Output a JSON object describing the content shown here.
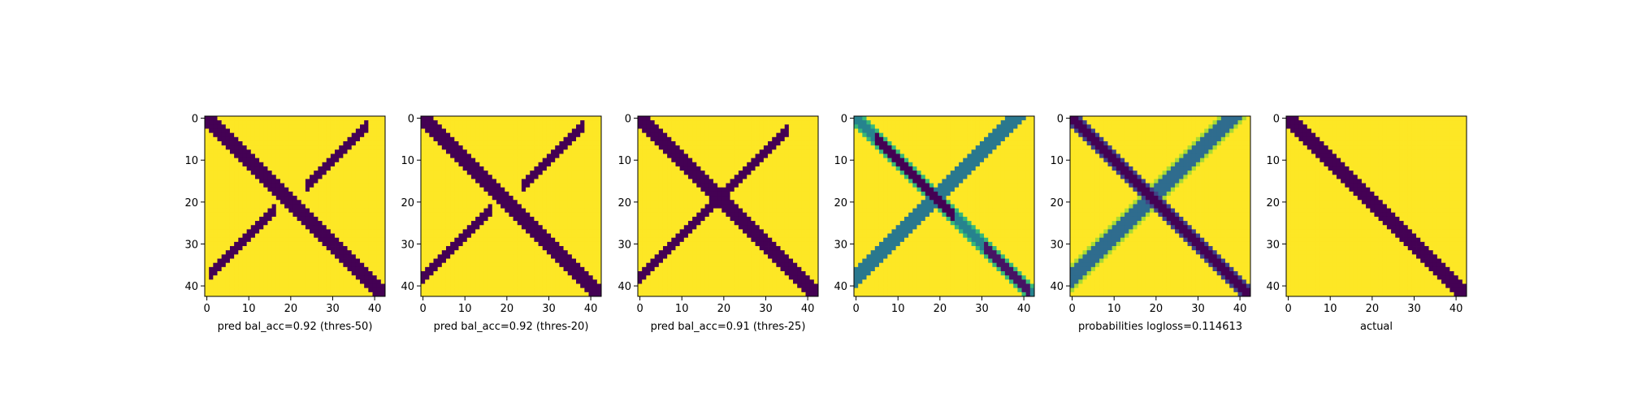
{
  "figure": {
    "background": "#ffffff"
  },
  "colormap": {
    "name": "viridis",
    "stops": [
      "#440154",
      "#482878",
      "#3e4a89",
      "#31688e",
      "#26828e",
      "#1f9e89",
      "#35b779",
      "#6ece58",
      "#b5de2b",
      "#fde725"
    ]
  },
  "chart_data": [
    {
      "type": "heatmap",
      "xlabel": "pred bal_acc=0.92 (thres-50)",
      "size": 43,
      "xticks": [
        0,
        10,
        20,
        30,
        40
      ],
      "yticks": [
        0,
        10,
        20,
        30,
        40
      ],
      "binary": true,
      "bands": [
        {
          "shape": "diagonal",
          "x_range": [
            0,
            42
          ],
          "half_width": 1.8,
          "strength": 1.0
        },
        {
          "shape": "anti-diagonal",
          "x_range": [
            2,
            15
          ],
          "offset": 38,
          "half_width": 1.0,
          "strength": 1.0
        },
        {
          "shape": "anti-diagonal",
          "x_range": [
            25,
            37
          ],
          "offset": 40,
          "half_width": 1.0,
          "strength": 1.0
        }
      ]
    },
    {
      "type": "heatmap",
      "xlabel": "pred bal_acc=0.92 (thres-20)",
      "size": 43,
      "xticks": [
        0,
        10,
        20,
        30,
        40
      ],
      "yticks": [
        0,
        10,
        20,
        30,
        40
      ],
      "binary": true,
      "bands": [
        {
          "shape": "diagonal",
          "x_range": [
            0,
            42
          ],
          "half_width": 1.9,
          "strength": 1.0
        },
        {
          "shape": "anti-diagonal",
          "x_range": [
            0,
            15
          ],
          "offset": 38,
          "half_width": 1.0,
          "strength": 1.0
        },
        {
          "shape": "anti-diagonal",
          "x_range": [
            25,
            37
          ],
          "offset": 40,
          "half_width": 1.0,
          "strength": 1.0
        }
      ]
    },
    {
      "type": "heatmap",
      "xlabel": "pred bal_acc=0.91 (thres-25)",
      "size": 43,
      "xticks": [
        0,
        10,
        20,
        30,
        40
      ],
      "yticks": [
        0,
        10,
        20,
        30,
        40
      ],
      "binary": true,
      "bands": [
        {
          "shape": "diagonal",
          "x_range": [
            0,
            42
          ],
          "half_width": 2.0,
          "strength": 1.0
        },
        {
          "shape": "anti-diagonal",
          "x_range": [
            0,
            34
          ],
          "offset": 38,
          "half_width": 1.3,
          "strength": 1.0
        }
      ]
    },
    {
      "type": "heatmap",
      "xlabel": "",
      "size": 43,
      "xticks": [
        0,
        10,
        20,
        30,
        40
      ],
      "yticks": [
        0,
        10,
        20,
        30,
        40
      ],
      "binary": false,
      "bands": [
        {
          "shape": "diagonal",
          "x_range": [
            0,
            42
          ],
          "half_width": 1.6,
          "strength": 0.55
        },
        {
          "shape": "diagonal",
          "x_range": [
            6,
            22
          ],
          "half_width": 1.2,
          "strength": 1.0
        },
        {
          "shape": "diagonal",
          "x_range": [
            32,
            40
          ],
          "half_width": 1.0,
          "strength": 0.95
        },
        {
          "shape": "anti-diagonal",
          "x_range": [
            0,
            42
          ],
          "offset": 38,
          "half_width": 2.0,
          "strength": 0.6
        }
      ]
    },
    {
      "type": "heatmap",
      "xlabel": "probabilities logloss=0.114613",
      "size": 43,
      "xticks": [
        0,
        10,
        20,
        30,
        40
      ],
      "yticks": [
        0,
        10,
        20,
        30,
        40
      ],
      "binary": false,
      "bands": [
        {
          "shape": "diagonal",
          "x_range": [
            0,
            42
          ],
          "half_width": 1.8,
          "strength": 1.0
        },
        {
          "shape": "anti-diagonal",
          "x_range": [
            0,
            42
          ],
          "offset": 38,
          "half_width": 2.2,
          "strength": 0.65
        }
      ]
    },
    {
      "type": "heatmap",
      "xlabel": "actual",
      "size": 43,
      "xticks": [
        0,
        10,
        20,
        30,
        40
      ],
      "yticks": [
        0,
        10,
        20,
        30,
        40
      ],
      "binary": true,
      "bands": [
        {
          "shape": "diagonal",
          "x_range": [
            0,
            42
          ],
          "half_width": 1.8,
          "strength": 1.0
        }
      ]
    }
  ]
}
